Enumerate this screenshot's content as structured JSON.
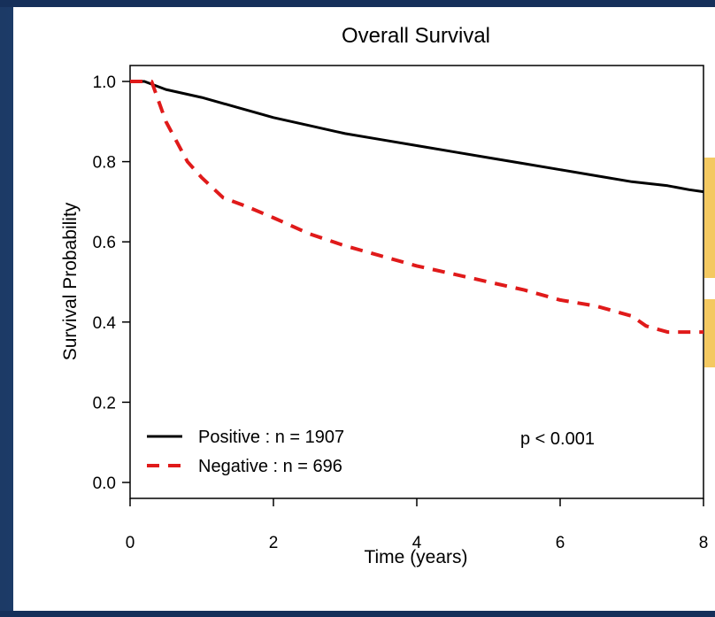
{
  "chart_data": {
    "type": "line",
    "title": "Overall Survival",
    "xlabel": "Time (years)",
    "ylabel": "Survival Probability",
    "xlim": [
      0,
      8
    ],
    "ylim": [
      0,
      1
    ],
    "x_ticks": [
      "0",
      "2",
      "4",
      "6",
      "8"
    ],
    "y_ticks": [
      "0.0",
      "0.2",
      "0.4",
      "0.6",
      "0.8",
      "1.0"
    ],
    "grid": false,
    "legend_position": "bottom-left",
    "annotation": "p < 0.001",
    "series": [
      {
        "name": "Positive : n = 1907",
        "color": "#000000",
        "line_style": "solid",
        "x": [
          0,
          0.2,
          0.5,
          1.0,
          1.5,
          2.0,
          2.5,
          3.0,
          3.5,
          4.0,
          4.5,
          5.0,
          5.5,
          6.0,
          6.5,
          7.0,
          7.5,
          7.8,
          8.0
        ],
        "y": [
          1.0,
          1.0,
          0.98,
          0.96,
          0.935,
          0.91,
          0.89,
          0.87,
          0.855,
          0.84,
          0.825,
          0.81,
          0.795,
          0.78,
          0.765,
          0.75,
          0.74,
          0.73,
          0.725
        ]
      },
      {
        "name": "Negative : n = 696",
        "color": "#e01a1a",
        "line_style": "dashed",
        "x": [
          0,
          0.3,
          0.5,
          0.8,
          1.0,
          1.3,
          1.6,
          2.0,
          2.5,
          3.0,
          3.5,
          4.0,
          4.5,
          5.0,
          5.5,
          6.0,
          6.5,
          7.0,
          7.2,
          7.5,
          8.0
        ],
        "y": [
          1.0,
          1.0,
          0.9,
          0.8,
          0.76,
          0.71,
          0.69,
          0.66,
          0.62,
          0.59,
          0.565,
          0.54,
          0.52,
          0.5,
          0.48,
          0.455,
          0.44,
          0.415,
          0.39,
          0.375,
          0.375
        ]
      }
    ]
  },
  "colors": {
    "background": "#24497f",
    "panel": "#ffffff",
    "accent": "#f4c961"
  }
}
